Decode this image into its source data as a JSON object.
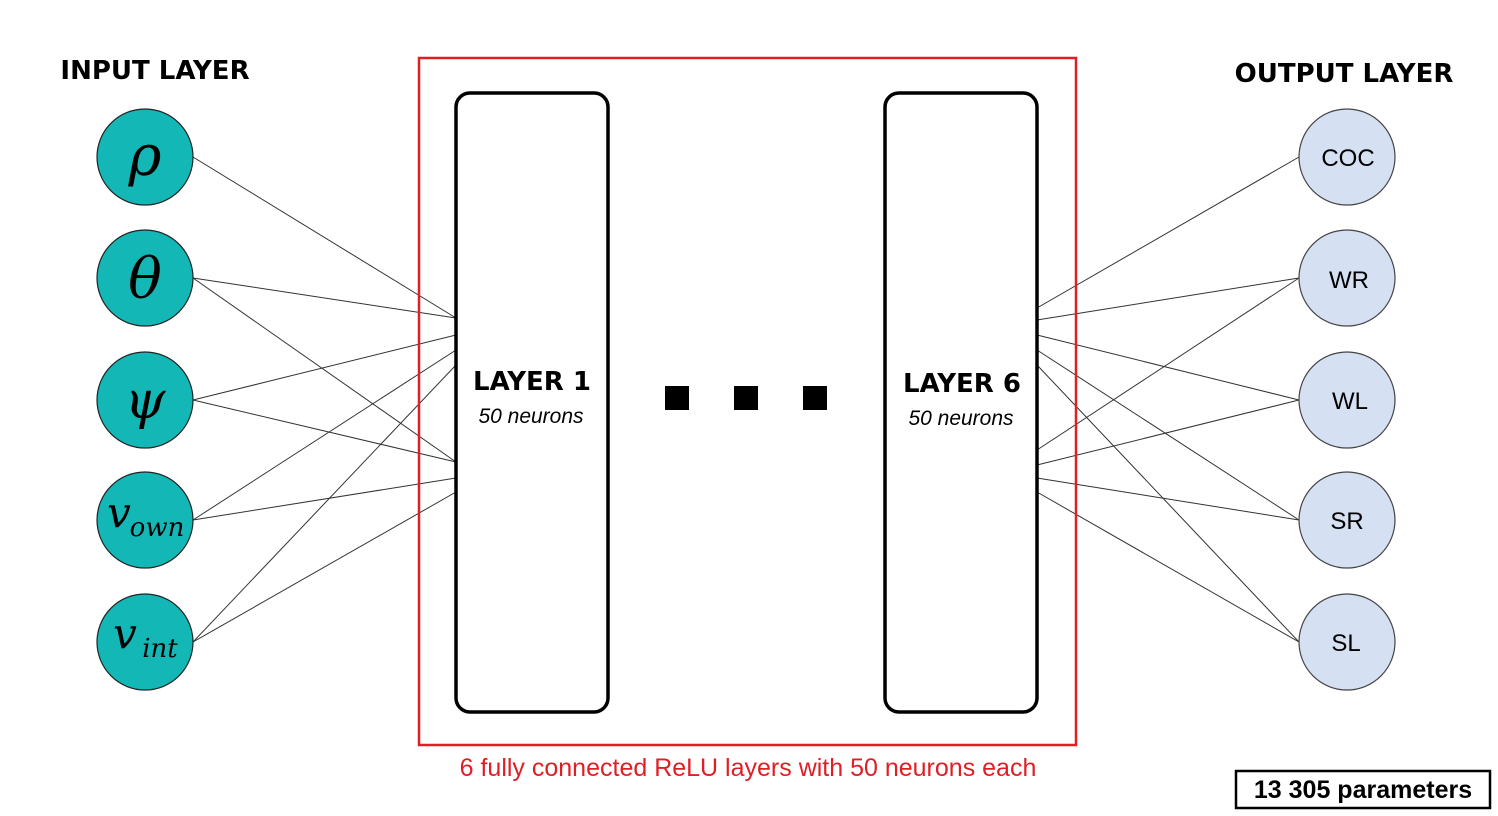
{
  "input_layer": {
    "title": "INPUT LAYER",
    "nodes": [
      {
        "symbol": "ρ",
        "subscript": ""
      },
      {
        "symbol": "θ",
        "subscript": ""
      },
      {
        "symbol": "ψ",
        "subscript": ""
      },
      {
        "symbol": "v",
        "subscript": "own"
      },
      {
        "symbol": "v",
        "subscript": "int"
      }
    ],
    "color": "#13b7b5"
  },
  "hidden": {
    "first": {
      "title": "LAYER 1",
      "subtitle": "50 neurons"
    },
    "last": {
      "title": "LAYER 6",
      "subtitle": "50 neurons"
    },
    "caption": "6 fully connected ReLU layers with 50 neurons each",
    "frame_color": "#e01e25"
  },
  "output_layer": {
    "title": "OUTPUT LAYER",
    "nodes": [
      "COC",
      "WR",
      "WL",
      "SR",
      "SL"
    ],
    "color": "#d5e0f2"
  },
  "parameters": "13 305 parameters"
}
